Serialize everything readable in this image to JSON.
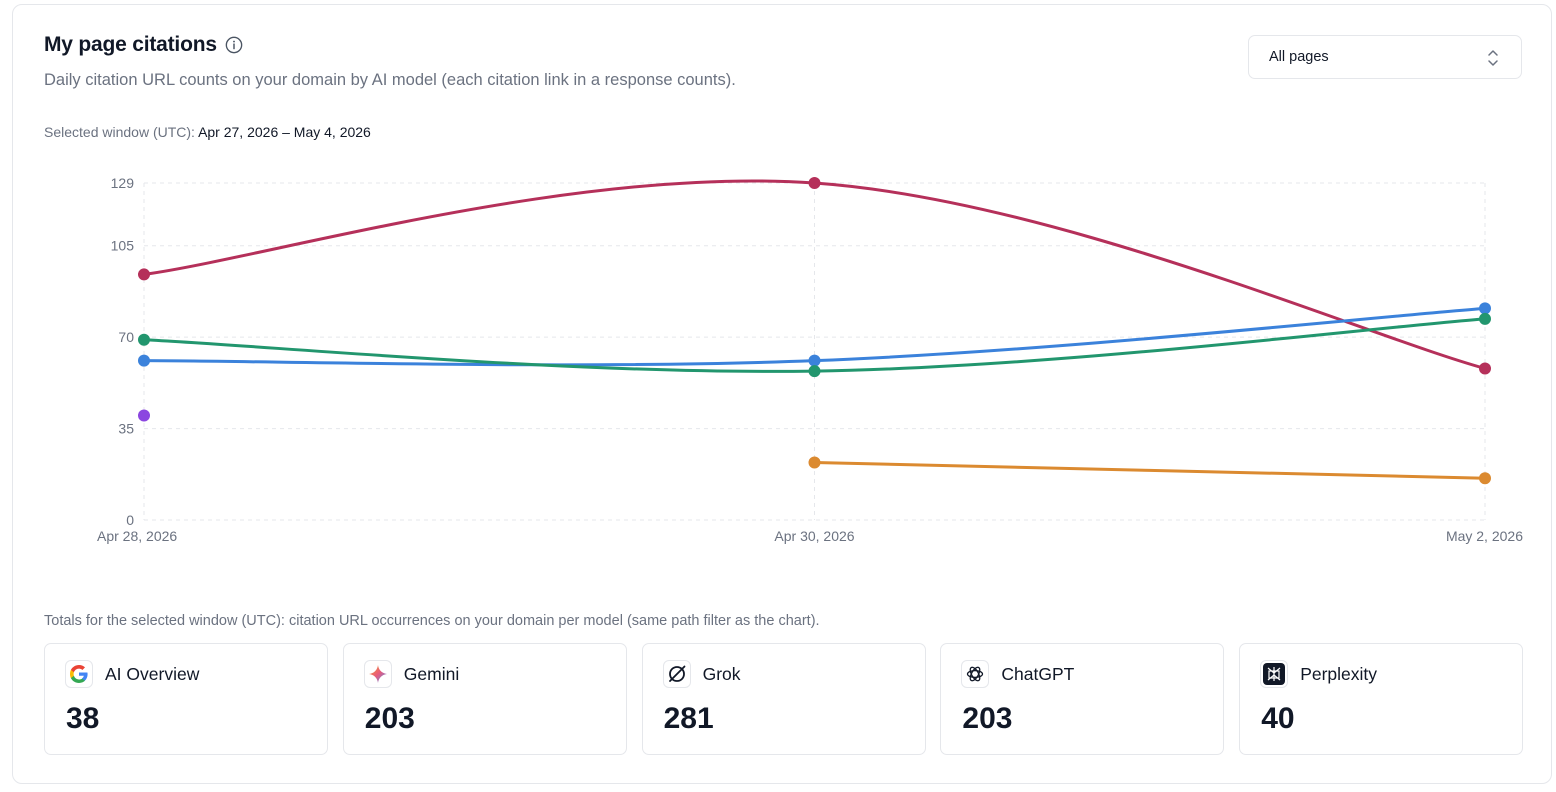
{
  "header": {
    "title": "My page citations",
    "subtitle": "Daily citation URL counts on your domain by AI model (each citation link in a response counts).",
    "window_label": "Selected window (UTC):",
    "window_value": "Apr 27, 2026 – May 4, 2026"
  },
  "filter": {
    "selected": "All pages"
  },
  "chart_data": {
    "type": "line",
    "categories": [
      "Apr 28, 2026",
      "Apr 30, 2026",
      "May 2, 2026"
    ],
    "y_ticks": [
      0,
      35,
      70,
      105,
      129
    ],
    "ylim": [
      0,
      129
    ],
    "grid": true,
    "series": [
      {
        "color": "#b5305a",
        "values": [
          94,
          129,
          58
        ]
      },
      {
        "color": "#3b82db",
        "values": [
          61,
          61,
          81
        ]
      },
      {
        "color": "#22966e",
        "values": [
          69,
          57,
          77
        ]
      },
      {
        "color": "#8b46e0",
        "values": [
          40,
          null,
          null
        ]
      },
      {
        "color": "#db8a30",
        "values": [
          null,
          22,
          16
        ]
      }
    ]
  },
  "totals": {
    "note": "Totals for the selected window (UTC): citation URL occurrences on your domain per model (same path filter as the chart).",
    "models": [
      {
        "name": "AI Overview",
        "total": "38",
        "icon": "google-icon"
      },
      {
        "name": "Gemini",
        "total": "203",
        "icon": "gemini-icon"
      },
      {
        "name": "Grok",
        "total": "281",
        "icon": "grok-icon"
      },
      {
        "name": "ChatGPT",
        "total": "203",
        "icon": "chatgpt-icon"
      },
      {
        "name": "Perplexity",
        "total": "40",
        "icon": "perplexity-icon"
      }
    ]
  }
}
